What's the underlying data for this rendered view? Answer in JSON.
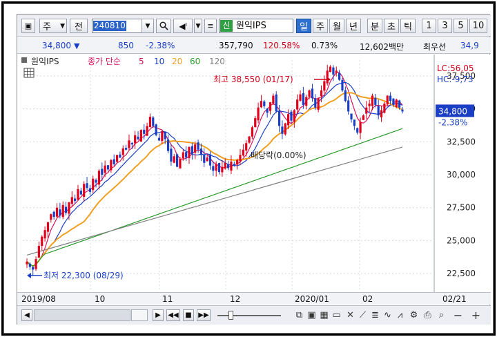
{
  "toolbar": {
    "market": "주",
    "prev": "전",
    "code": "240810",
    "new_badge": "신",
    "name": "원익IPS",
    "periods": [
      "일",
      "주",
      "월",
      "년",
      "분",
      "초",
      "틱"
    ],
    "active_period": "일",
    "intervals": [
      "1",
      "3",
      "5",
      "10"
    ]
  },
  "info": {
    "price": "34,800",
    "change": "850",
    "change_pct": "-2.38%",
    "volume": "357,790",
    "vol_ratio": "120.58%",
    "turnover": "0.73%",
    "amount": "12,602백만",
    "best_label": "최우선",
    "best_price": "34,9"
  },
  "legend": {
    "name": "원익IPS",
    "ma_label": "종가 단순",
    "ma_periods": [
      "5",
      "10",
      "20",
      "60",
      "120"
    ],
    "ma_colors": [
      "#d4145a",
      "#1a3fc4",
      "#f0a020",
      "#2a9a2a",
      "#808080"
    ]
  },
  "annotations": {
    "high": "최고 38,550 (01/17)",
    "low": "최저 22,300 (08/29)",
    "dividend": "배당락(0.00%)",
    "lc": "LC:56,05",
    "hc": "HC:-9,73",
    "current_price": "34,800",
    "current_pct": "-2.38%"
  },
  "chart_data": {
    "type": "candlestick",
    "period": "daily",
    "x_ticks": [
      "2019/08",
      "10",
      "11",
      "12",
      "2020/01",
      "02",
      "02/21"
    ],
    "y_ticks": [
      22500,
      25000,
      27500,
      30000,
      32500,
      35000,
      37500
    ],
    "ylim": [
      21300,
      38700
    ],
    "start": "2019-08-26",
    "end": "2020-02-21",
    "closes": [
      23400,
      23000,
      22800,
      23600,
      24600,
      25300,
      25800,
      26400,
      27000,
      26800,
      27500,
      26900,
      27700,
      27100,
      27900,
      28300,
      28000,
      28900,
      28500,
      29300,
      29000,
      28700,
      29700,
      29400,
      30300,
      30000,
      30700,
      30400,
      31100,
      30800,
      31500,
      31300,
      32000,
      31900,
      32600,
      32300,
      33000,
      32700,
      33400,
      33100,
      33700,
      34400,
      33700,
      33000,
      32600,
      33300,
      32700,
      31800,
      31000,
      31400,
      30600,
      31200,
      31700,
      31300,
      32100,
      31600,
      32300,
      31900,
      31500,
      30900,
      31300,
      30700,
      30300,
      30800,
      30200,
      30600,
      30900,
      30500,
      31000,
      30700,
      31100,
      31500,
      31900,
      32400,
      32900,
      33600,
      34300,
      35100,
      35600,
      35200,
      34700,
      35500,
      36000,
      34800,
      33700,
      33100,
      33900,
      34600,
      34100,
      34900,
      35700,
      36100,
      35300,
      35900,
      36400,
      35800,
      35100,
      35800,
      36400,
      37100,
      37900,
      38200,
      37600,
      37900,
      37200,
      36400,
      35600,
      34800,
      34200,
      33700,
      33200,
      34000,
      34500,
      35100,
      35400,
      36000,
      35300,
      34500,
      34900,
      35400,
      36000,
      35600,
      35300,
      35700,
      35100,
      34800
    ]
  },
  "xaxis": {
    "labels": [
      "2019/08",
      "10",
      "11",
      "12",
      "2020/01",
      "02",
      "02/21"
    ]
  },
  "scroll": {
    "nav_buttons": [
      "◀",
      "▶",
      "◀◀",
      "■",
      "▶▶"
    ],
    "zoom_minus": "−",
    "zoom_plus": "+"
  }
}
